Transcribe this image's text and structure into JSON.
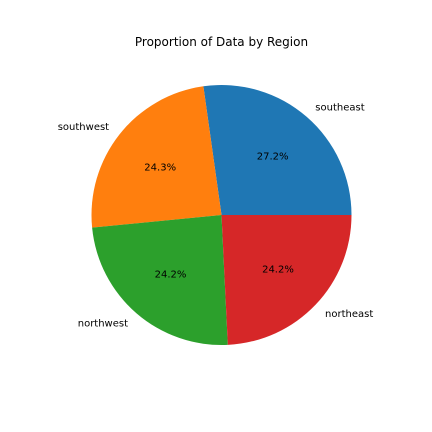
{
  "chart_data": {
    "type": "pie",
    "title": "Proportion of Data by Region",
    "categories": [
      "southeast",
      "southwest",
      "northwest",
      "northeast"
    ],
    "values": [
      27.2,
      24.3,
      24.2,
      24.2
    ],
    "value_labels": [
      "27.2%",
      "24.3%",
      "24.2%",
      "24.2%"
    ],
    "colors": [
      "#1f77b4",
      "#ff7f0e",
      "#2ca02c",
      "#d62728"
    ],
    "start_angle_deg": 0,
    "direction": "counterclockwise",
    "legend": "none"
  }
}
